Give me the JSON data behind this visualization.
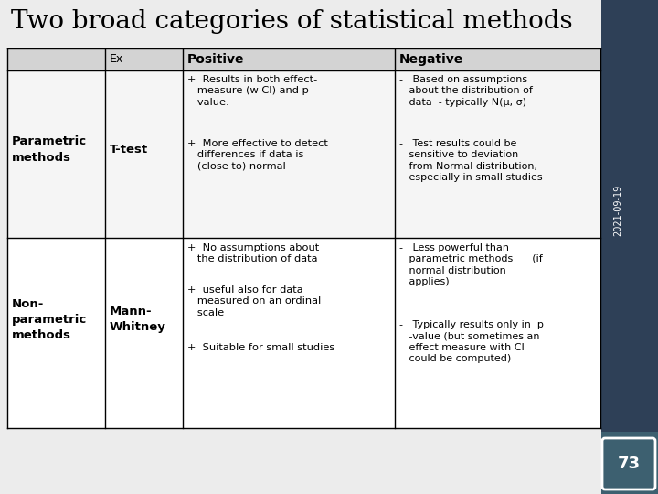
{
  "title": "Two broad categories of statistical methods",
  "title_fontsize": 20,
  "title_font": "serif",
  "bg_color": "#ececec",
  "right_panel_color": "#2e4057",
  "right_panel_bottom_color": "#3d6070",
  "slide_number": "73",
  "date_label": "2021-09-19",
  "header_bg": "#d3d3d3",
  "row1_bg": "#f5f5f5",
  "row2_bg": "#ffffff",
  "col_headers": [
    "Ex",
    "Positive",
    "Negative"
  ],
  "row_labels": [
    "Parametric\nmethods",
    "Non-\nparametric\nmethods"
  ],
  "examples": [
    "T-test",
    "Mann-\nWhitney"
  ],
  "positive_row1_p1": "+  Results in both effect-\n   measure (w CI) and p-\n   value.",
  "positive_row1_p2": "+  More effective to detect\n   differences if data is\n   (close to) normal",
  "negative_row1_p1": "-   Based on assumptions\n   about the distribution of\n   data  - typically N(μ, σ)",
  "negative_row1_p2": "-   Test results could be\n   sensitive to deviation\n   from Normal distribution,\n   especially in small studies",
  "positive_row2_p1": "+  No assumptions about\n   the distribution of data",
  "positive_row2_p2": "+  useful also for data\n   measured on an ordinal\n   scale",
  "positive_row2_p3": "+  Suitable for small studies",
  "negative_row2_p1": "-   Less powerful than\n   parametric methods      (if\n   normal distribution\n   applies)",
  "negative_row2_p2": "-   Typically results only in  p\n   -value (but sometimes an\n   effect measure with CI\n   could be computed)"
}
